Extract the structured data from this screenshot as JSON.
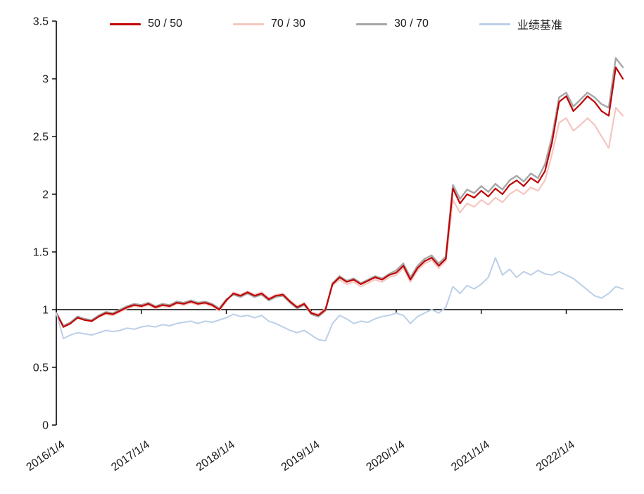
{
  "chart_data": {
    "type": "line",
    "title": "",
    "legend_position": "top",
    "grid": false,
    "baseline": 1,
    "x_axis": {
      "unit": "months since 2016/1",
      "xlim": [
        0,
        80
      ],
      "ticks": [
        {
          "m": 0,
          "label": "2016/1/4"
        },
        {
          "m": 12,
          "label": "2017/1/4"
        },
        {
          "m": 24,
          "label": "2018/1/4"
        },
        {
          "m": 36,
          "label": "2019/1/4"
        },
        {
          "m": 48,
          "label": "2020/1/4"
        },
        {
          "m": 60,
          "label": "2021/1/4"
        },
        {
          "m": 72,
          "label": "2022/1/4"
        }
      ]
    },
    "y_axis": {
      "ylim": [
        0,
        3.5
      ],
      "ticks": [
        0,
        0.5,
        1,
        1.5,
        2,
        2.5,
        3,
        3.5
      ],
      "tick_labels": [
        "0",
        "0.5",
        "1",
        "1.5",
        "2",
        "2.5",
        "3",
        "3.5"
      ]
    },
    "series": [
      {
        "name": "70 / 30",
        "color": "#F5C6C1",
        "stroke_width": 2.2,
        "values": [
          0.96,
          0.85,
          0.89,
          0.93,
          0.91,
          0.9,
          0.94,
          0.96,
          0.95,
          0.98,
          1.01,
          1.03,
          1.02,
          1.04,
          1.01,
          1.03,
          1.02,
          1.05,
          1.04,
          1.06,
          1.04,
          1.05,
          1.03,
          0.99,
          1.07,
          1.15,
          1.13,
          1.16,
          1.13,
          1.15,
          1.1,
          1.13,
          1.14,
          1.08,
          1.03,
          1.06,
          0.98,
          0.96,
          1.01,
          1.21,
          1.26,
          1.22,
          1.24,
          1.2,
          1.23,
          1.26,
          1.24,
          1.28,
          1.3,
          1.36,
          1.24,
          1.34,
          1.4,
          1.43,
          1.36,
          1.42,
          1.95,
          1.84,
          1.92,
          1.89,
          1.95,
          1.91,
          1.97,
          1.93,
          2.0,
          2.04,
          2.0,
          2.06,
          2.03,
          2.12,
          2.35,
          2.62,
          2.66,
          2.55,
          2.6,
          2.66,
          2.6,
          2.5,
          2.4,
          2.75,
          2.68
        ]
      },
      {
        "name": "30 / 70",
        "color": "#A6A6A6",
        "stroke_width": 2.4,
        "values": [
          0.97,
          0.86,
          0.89,
          0.94,
          0.92,
          0.91,
          0.95,
          0.98,
          0.97,
          1.0,
          1.03,
          1.05,
          1.04,
          1.06,
          1.03,
          1.05,
          1.04,
          1.07,
          1.06,
          1.08,
          1.06,
          1.07,
          1.05,
          1.01,
          1.09,
          1.13,
          1.11,
          1.14,
          1.11,
          1.13,
          1.08,
          1.11,
          1.12,
          1.06,
          1.01,
          1.04,
          0.96,
          0.94,
          0.99,
          1.23,
          1.29,
          1.25,
          1.27,
          1.23,
          1.26,
          1.29,
          1.27,
          1.31,
          1.34,
          1.4,
          1.28,
          1.38,
          1.44,
          1.47,
          1.4,
          1.46,
          2.08,
          1.96,
          2.04,
          2.01,
          2.07,
          2.02,
          2.09,
          2.04,
          2.12,
          2.16,
          2.11,
          2.18,
          2.14,
          2.26,
          2.5,
          2.84,
          2.88,
          2.76,
          2.82,
          2.88,
          2.84,
          2.78,
          2.75,
          3.18,
          3.1
        ]
      },
      {
        "name": "50 / 50",
        "color": "#C00000",
        "stroke_width": 2.2,
        "values": [
          0.97,
          0.85,
          0.88,
          0.93,
          0.91,
          0.9,
          0.94,
          0.97,
          0.96,
          0.99,
          1.02,
          1.04,
          1.03,
          1.05,
          1.02,
          1.04,
          1.03,
          1.06,
          1.05,
          1.07,
          1.05,
          1.06,
          1.04,
          1.0,
          1.08,
          1.14,
          1.12,
          1.15,
          1.12,
          1.14,
          1.09,
          1.12,
          1.13,
          1.07,
          1.02,
          1.05,
          0.97,
          0.95,
          1.0,
          1.22,
          1.28,
          1.24,
          1.26,
          1.22,
          1.25,
          1.28,
          1.26,
          1.3,
          1.32,
          1.38,
          1.26,
          1.36,
          1.42,
          1.45,
          1.38,
          1.44,
          2.05,
          1.92,
          2.0,
          1.97,
          2.03,
          1.98,
          2.05,
          2.0,
          2.08,
          2.12,
          2.07,
          2.14,
          2.1,
          2.2,
          2.45,
          2.8,
          2.85,
          2.72,
          2.78,
          2.85,
          2.8,
          2.72,
          2.68,
          3.1,
          3.0
        ]
      },
      {
        "name": "业绩基准",
        "color": "#BCCFE8",
        "stroke_width": 2.0,
        "values": [
          0.97,
          0.75,
          0.78,
          0.8,
          0.79,
          0.78,
          0.8,
          0.82,
          0.81,
          0.82,
          0.84,
          0.83,
          0.85,
          0.86,
          0.85,
          0.87,
          0.86,
          0.88,
          0.89,
          0.9,
          0.88,
          0.9,
          0.89,
          0.91,
          0.93,
          0.96,
          0.94,
          0.95,
          0.93,
          0.95,
          0.9,
          0.88,
          0.85,
          0.82,
          0.8,
          0.82,
          0.78,
          0.74,
          0.73,
          0.88,
          0.95,
          0.92,
          0.88,
          0.9,
          0.89,
          0.92,
          0.94,
          0.95,
          0.97,
          0.95,
          0.88,
          0.94,
          0.97,
          1.0,
          0.97,
          1.02,
          1.2,
          1.14,
          1.21,
          1.18,
          1.22,
          1.28,
          1.45,
          1.3,
          1.35,
          1.28,
          1.33,
          1.3,
          1.34,
          1.31,
          1.3,
          1.33,
          1.3,
          1.27,
          1.22,
          1.17,
          1.12,
          1.1,
          1.14,
          1.2,
          1.18
        ]
      }
    ],
    "legend_order": [
      "50 / 50",
      "70 / 30",
      "30 / 70",
      "业绩基准"
    ]
  },
  "colors": {
    "axis_line": "#000000",
    "tick_text": "#1a1a1a",
    "background": "#ffffff"
  }
}
